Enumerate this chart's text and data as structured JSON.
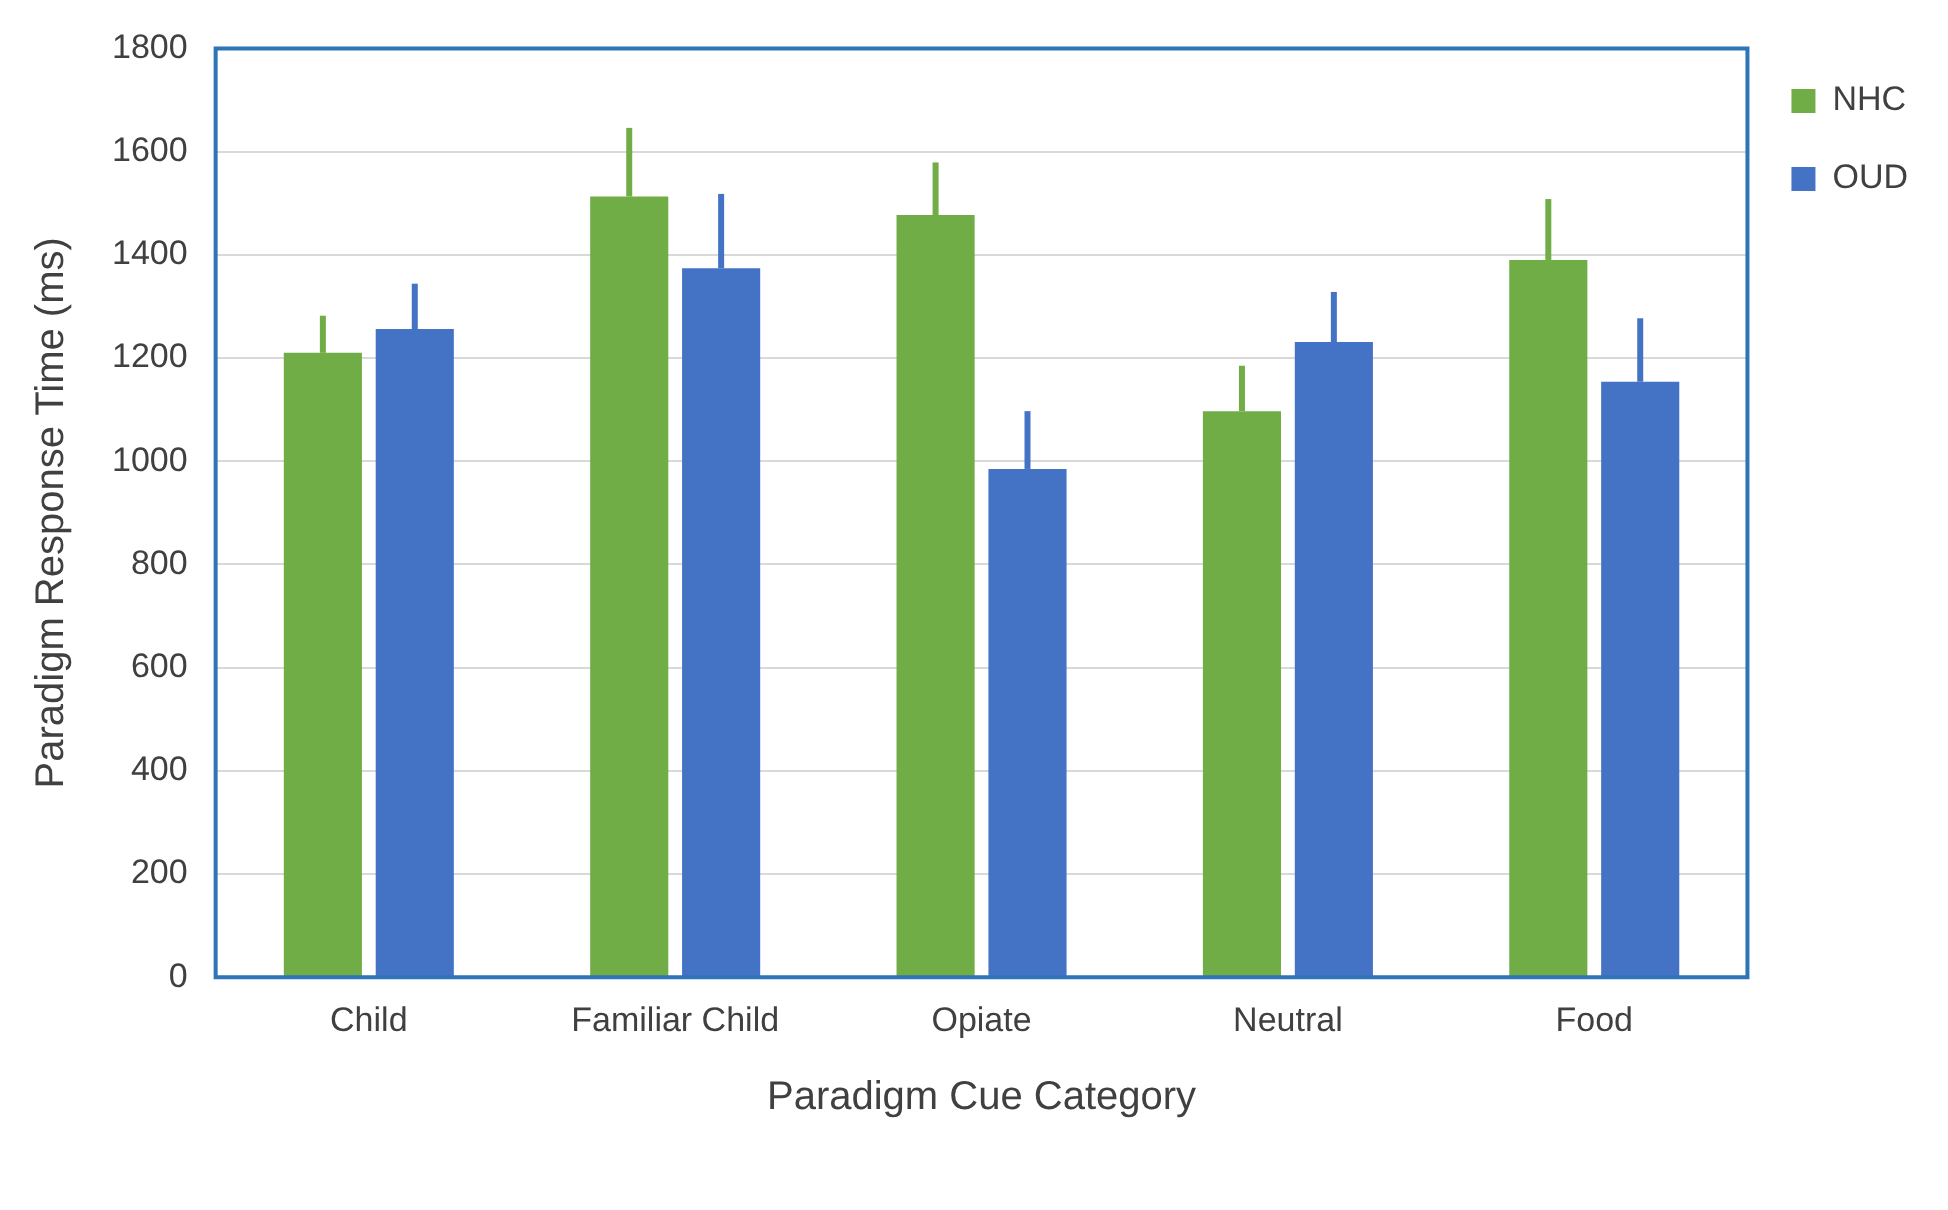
{
  "chart_data": {
    "type": "bar",
    "xlabel": "Paradigm Cue Category",
    "ylabel": "Paradigm Response Time (ms)",
    "categories": [
      "Child",
      "Familiar Child",
      "Opiate",
      "Neutral",
      "Food"
    ],
    "series": [
      {
        "name": "NHC",
        "color": "#70ad47",
        "values": [
          1210,
          1513,
          1477,
          1097,
          1390
        ],
        "errors": [
          [
            1210,
            1282
          ],
          [
            1513,
            1646
          ],
          [
            1477,
            1579
          ],
          [
            1097,
            1185
          ],
          [
            1390,
            1508
          ]
        ]
      },
      {
        "name": "OUD",
        "color": "#4472c4",
        "values": [
          1256,
          1374,
          985,
          1231,
          1154
        ],
        "errors": [
          [
            1256,
            1344
          ],
          [
            1374,
            1518
          ],
          [
            985,
            1097
          ],
          [
            1231,
            1328
          ],
          [
            1154,
            1277
          ]
        ]
      }
    ],
    "ylim": [
      0,
      1800
    ],
    "yticks": [
      0,
      200,
      400,
      600,
      800,
      1000,
      1200,
      1400,
      1600,
      1800
    ],
    "grid": "y",
    "legend": "top right"
  }
}
